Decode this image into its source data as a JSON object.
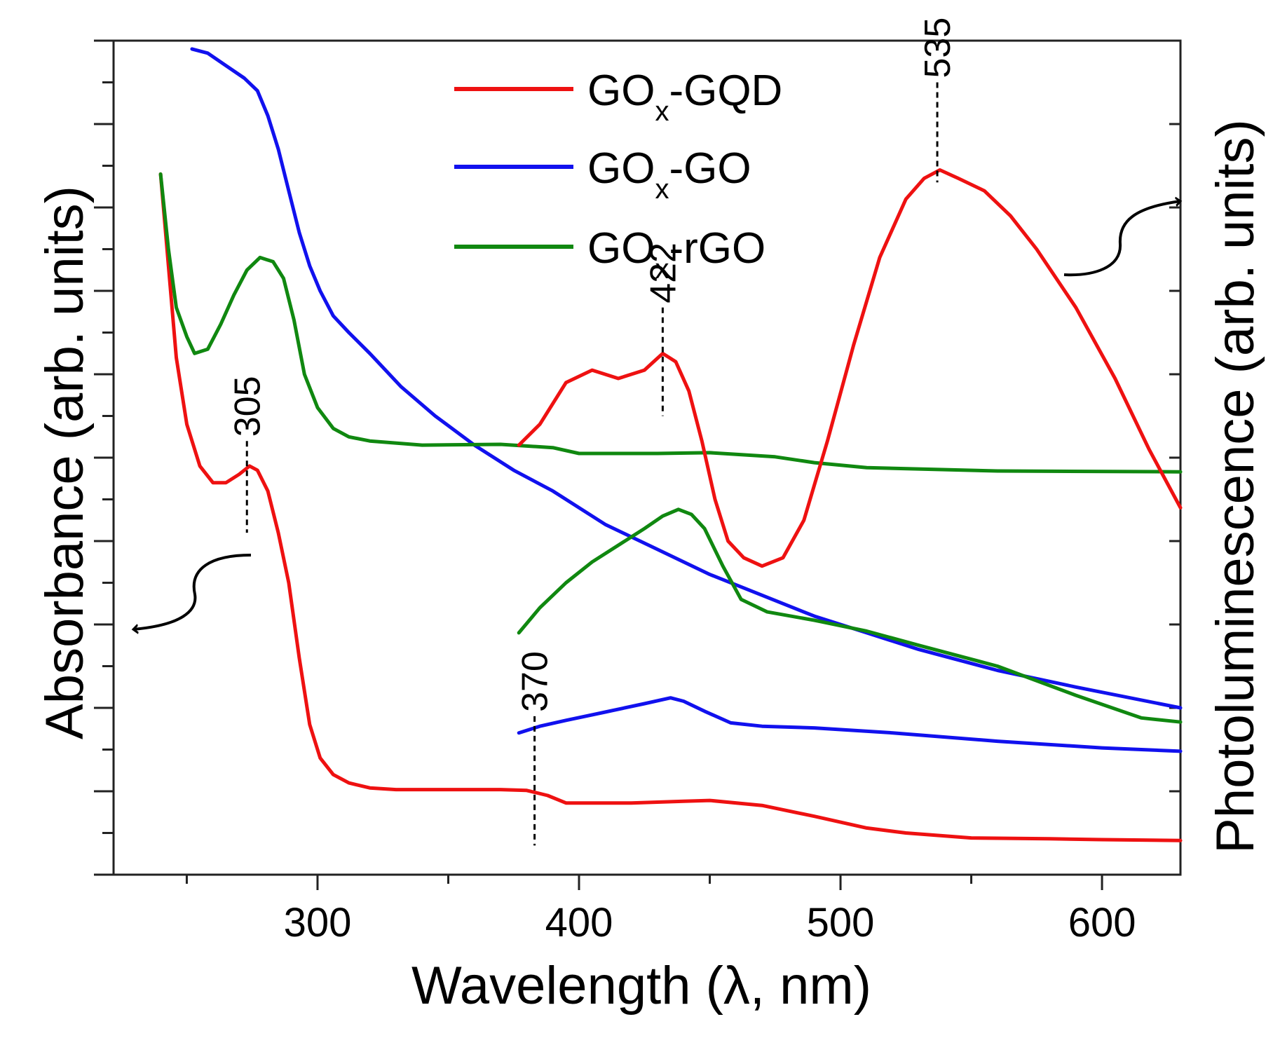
{
  "chart_data": {
    "type": "line",
    "title": "",
    "xlabel": "Wavelength (λ, nm)",
    "ylabel_left": "Absorbance (arb. units)",
    "ylabel_right": "Photoluminescence (arb. units)",
    "xlim": [
      222,
      630
    ],
    "ylim": [
      0,
      100
    ],
    "x_ticks": [
      300,
      400,
      500,
      600
    ],
    "x_tick_labels": [
      "300",
      "400",
      "500",
      "600"
    ],
    "grid": false,
    "legend": {
      "position": "top-center",
      "entries": [
        {
          "prefix": "GO",
          "sub": "x",
          "suffix": "-GQD",
          "color": "#ee1111"
        },
        {
          "prefix": "GO",
          "sub": "x",
          "suffix": "-GO",
          "color": "#1111ee"
        },
        {
          "prefix": "GO",
          "sub": "x",
          "suffix": "-rGO",
          "color": "#108810"
        }
      ]
    },
    "series": [
      {
        "name": "GOx-GQD absorbance",
        "color": "#ee1111",
        "axis": "left",
        "x": [
          240,
          243,
          246,
          250,
          255,
          260,
          265,
          270,
          274,
          277,
          281,
          285,
          289,
          293,
          297,
          301,
          306,
          312,
          320,
          330,
          350,
          370,
          380,
          388,
          395,
          405,
          420,
          440,
          450,
          470,
          490,
          510,
          525,
          550,
          580,
          600,
          630
        ],
        "y": [
          84,
          73,
          62,
          54,
          49,
          47,
          47,
          48,
          49,
          48.5,
          46,
          41,
          35,
          26,
          18,
          14,
          12,
          11,
          10.4,
          10.2,
          10.2,
          10.2,
          10.1,
          9.5,
          8.6,
          8.6,
          8.6,
          8.8,
          8.9,
          8.3,
          7,
          5.6,
          5,
          4.4,
          4.3,
          4.2,
          4.1
        ]
      },
      {
        "name": "GOx-GO absorbance",
        "color": "#1111ee",
        "axis": "left",
        "x": [
          252,
          258,
          265,
          272,
          277,
          281,
          285,
          289,
          293,
          297,
          301,
          306,
          312,
          320,
          332,
          345,
          360,
          375,
          390,
          410,
          430,
          450,
          470,
          490,
          510,
          530,
          560,
          590,
          630
        ],
        "y": [
          99,
          98.5,
          97,
          95.5,
          94,
          91,
          87,
          82,
          77,
          73,
          70,
          67,
          65,
          62.5,
          58.5,
          55,
          51.5,
          48.5,
          46,
          42,
          39,
          36,
          33.5,
          31,
          29,
          27,
          24.5,
          22.5,
          20
        ]
      },
      {
        "name": "GOx-rGO absorbance",
        "color": "#108810",
        "axis": "left",
        "x": [
          240,
          243,
          246,
          250,
          253,
          258,
          263,
          268,
          273,
          278,
          283,
          287,
          291,
          295,
          300,
          306,
          312,
          320,
          340,
          370,
          390,
          400,
          430,
          450,
          475,
          490,
          510,
          560,
          630
        ],
        "y": [
          84,
          75,
          68,
          64.5,
          62.5,
          63,
          66,
          69.5,
          72.5,
          74,
          73.5,
          71.5,
          66.5,
          60,
          56,
          53.5,
          52.5,
          52,
          51.5,
          51.6,
          51.2,
          50.5,
          50.5,
          50.6,
          50.1,
          49.4,
          48.8,
          48.4,
          48.3
        ]
      },
      {
        "name": "GOx-GQD photoluminescence",
        "color": "#ee1111",
        "axis": "right",
        "x": [
          377,
          385,
          395,
          405,
          415,
          425,
          432,
          437,
          442,
          447,
          452,
          457,
          463,
          470,
          478,
          486,
          495,
          505,
          515,
          525,
          532,
          538,
          545,
          555,
          565,
          575,
          590,
          605,
          618,
          630
        ],
        "y": [
          51.5,
          54,
          59,
          60.5,
          59.5,
          60.5,
          62.5,
          61.5,
          58,
          52,
          45,
          40,
          38,
          37,
          38,
          42.5,
          52,
          63.5,
          74,
          81,
          83.5,
          84.5,
          83.5,
          82,
          79,
          75,
          68,
          59.5,
          51,
          44
        ]
      },
      {
        "name": "GOx-GO photoluminescence",
        "color": "#1111ee",
        "axis": "right",
        "x": [
          377,
          385,
          395,
          410,
          425,
          435,
          440,
          448,
          458,
          470,
          490,
          520,
          560,
          600,
          630
        ],
        "y": [
          17,
          17.8,
          18.5,
          19.5,
          20.5,
          21.2,
          20.8,
          19.6,
          18.2,
          17.8,
          17.6,
          17,
          16,
          15.2,
          14.8
        ]
      },
      {
        "name": "GOx-rGO photoluminescence",
        "color": "#108810",
        "axis": "right",
        "x": [
          377,
          385,
          395,
          405,
          415,
          425,
          432,
          438,
          443,
          448,
          455,
          462,
          472,
          490,
          510,
          530,
          560,
          590,
          615,
          630
        ],
        "y": [
          29,
          32,
          35,
          37.5,
          39.5,
          41.5,
          43,
          43.8,
          43.2,
          41.5,
          37,
          33,
          31.5,
          30.5,
          29.2,
          27.5,
          25,
          21.5,
          18.8,
          18.3
        ]
      }
    ],
    "annotations": [
      {
        "text": "305",
        "x": 273,
        "y_top": 52,
        "y_bottom": 41
      },
      {
        "text": "422",
        "x": 432,
        "y_top": 68,
        "y_bottom": 55
      },
      {
        "text": "535",
        "x": 537,
        "y_top": 95,
        "y_bottom": 83
      },
      {
        "text": "370",
        "x": 383,
        "y_top": 19,
        "y_bottom": 3.5
      }
    ]
  }
}
